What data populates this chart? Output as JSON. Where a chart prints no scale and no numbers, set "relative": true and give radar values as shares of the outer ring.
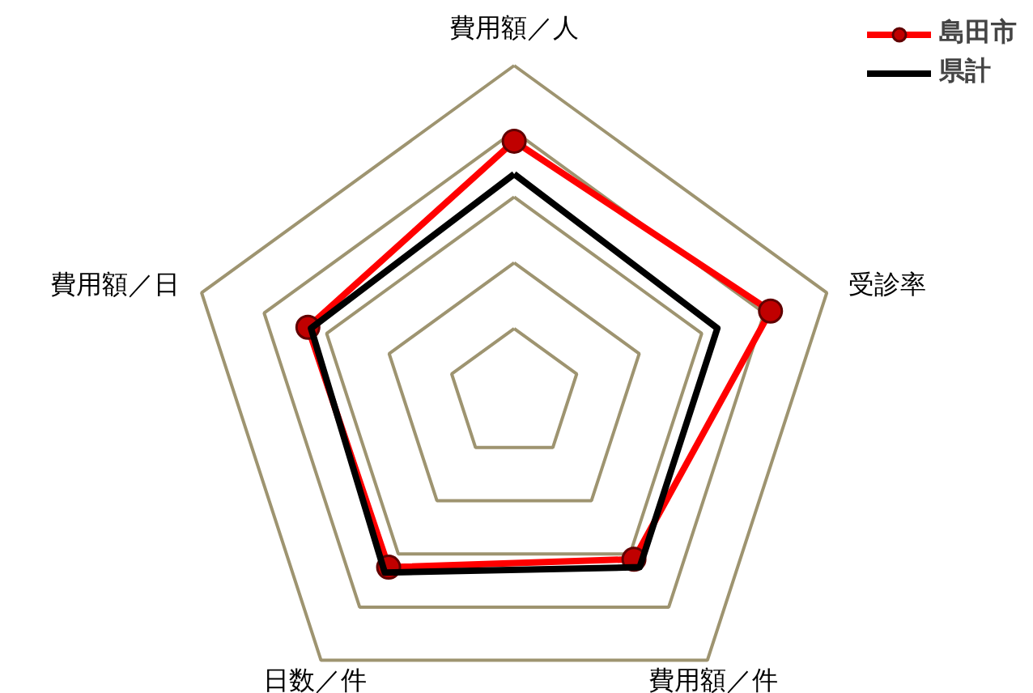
{
  "chart_data": {
    "type": "radar",
    "relative": true,
    "categories": [
      "費用額／人",
      "受診率",
      "費用額／件",
      "日数／件",
      "費用額／日"
    ],
    "series": [
      {
        "name": "島田市",
        "color": "#ff0000",
        "marker": "circle",
        "values": [
          0.77,
          0.82,
          0.62,
          0.65,
          0.66
        ]
      },
      {
        "name": "県計",
        "color": "#000000",
        "marker": "none",
        "values": [
          0.67,
          0.65,
          0.65,
          0.67,
          0.65
        ]
      }
    ],
    "grid": true,
    "legend": "top right"
  }
}
